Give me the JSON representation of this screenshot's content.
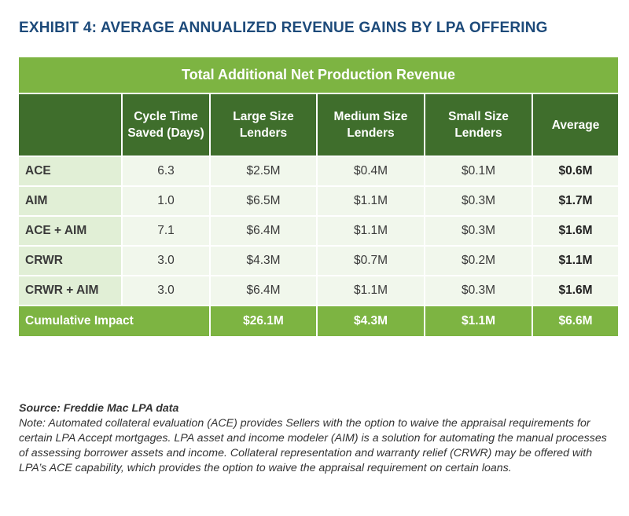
{
  "title": "EXHIBIT 4: AVERAGE ANNUALIZED REVENUE GAINS BY LPA OFFERING",
  "table": {
    "group_header": "Total Additional Net Production Revenue",
    "columns": [
      "",
      "Cycle Time Saved (Days)",
      "Large Size Lenders",
      "Medium Size Lenders",
      "Small Size Lenders",
      "Average"
    ],
    "rows": [
      [
        "ACE",
        "6.3",
        "$2.5M",
        "$0.4M",
        "$0.1M",
        "$0.6M"
      ],
      [
        "AIM",
        "1.0",
        "$6.5M",
        "$1.1M",
        "$0.3M",
        "$1.7M"
      ],
      [
        "ACE + AIM",
        "7.1",
        "$6.4M",
        "$1.1M",
        "$0.3M",
        "$1.6M"
      ],
      [
        "CRWR",
        "3.0",
        "$4.3M",
        "$0.7M",
        "$0.2M",
        "$1.1M"
      ],
      [
        "CRWR + AIM",
        "3.0",
        "$6.4M",
        "$1.1M",
        "$0.3M",
        "$1.6M"
      ]
    ],
    "cumulative": [
      "Cumulative Impact",
      "$26.1M",
      "$4.3M",
      "$1.1M",
      "$6.6M"
    ]
  },
  "source": "Source: Freddie Mac LPA data",
  "note": "Note: Automated collateral evaluation (ACE) provides Sellers with the option to waive the appraisal requirements for certain LPA Accept mortgages. LPA asset and income modeler (AIM) is a solution for automating the manual processes of assessing borrower assets and income. Collateral representation and warranty relief (CRWR) may be offered with LPA’s ACE capability, which provides the option to waive the appraisal requirement on certain loans.",
  "colors": {
    "light_green": "#7db442",
    "dark_green": "#3f6e2c",
    "title_blue": "#1d4a7a"
  }
}
